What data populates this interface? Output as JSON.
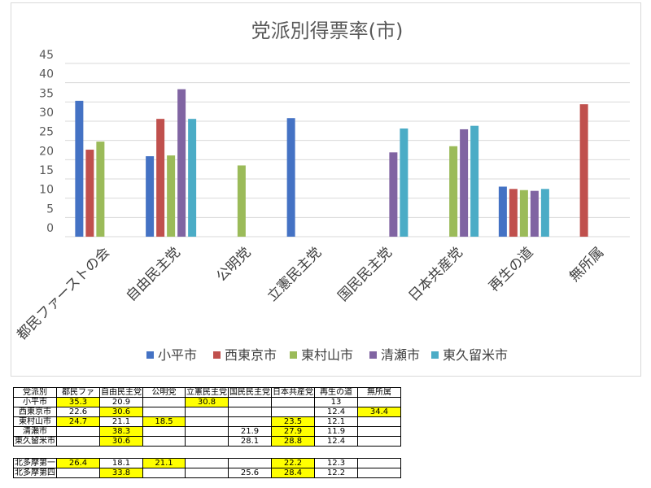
{
  "chart_data": {
    "type": "bar",
    "title": "党派別得票率(市)",
    "categories": [
      "都民ファーストの会",
      "自由民主党",
      "公明党",
      "立憲民主党",
      "国民民主党",
      "日本共産党",
      "再生の道",
      "無所属"
    ],
    "yticks": [
      "45",
      "40",
      "35",
      "30",
      "25",
      "20",
      "15",
      "10",
      "5",
      "0"
    ],
    "ylim": [
      0,
      45
    ],
    "grid": true,
    "legend_position": "bottom",
    "series": [
      {
        "name": "小平市",
        "color": "#4472c4",
        "values": [
          35.3,
          20.9,
          null,
          30.8,
          null,
          null,
          13.0,
          null
        ]
      },
      {
        "name": "西東京市",
        "color": "#c0504d",
        "values": [
          22.6,
          30.6,
          null,
          null,
          null,
          null,
          12.4,
          34.4
        ]
      },
      {
        "name": "東村山市",
        "color": "#9bbb59",
        "values": [
          24.7,
          21.1,
          18.5,
          null,
          null,
          23.5,
          12.1,
          null
        ]
      },
      {
        "name": "清瀬市",
        "color": "#8064a2",
        "values": [
          null,
          38.3,
          null,
          null,
          21.9,
          27.9,
          11.9,
          null
        ]
      },
      {
        "name": "東久留米市",
        "color": "#4bacc6",
        "values": [
          null,
          30.6,
          null,
          null,
          28.1,
          28.8,
          12.4,
          null
        ]
      }
    ]
  },
  "table": {
    "header": [
      "党派別",
      "都民ファ",
      "自由民主党",
      "公明党",
      "立憲民主党",
      "国民民主党",
      "日本共産党",
      "再生の道",
      "無所属"
    ],
    "rows": [
      {
        "label": "小平市",
        "cells": [
          "35.3",
          "20.9",
          "",
          "30.8",
          "",
          "",
          "13",
          ""
        ],
        "highlight": [
          true,
          false,
          false,
          true,
          false,
          false,
          false,
          false
        ]
      },
      {
        "label": "西東京市",
        "cells": [
          "22.6",
          "30.6",
          "",
          "",
          "",
          "",
          "12.4",
          "34.4"
        ],
        "highlight": [
          false,
          true,
          false,
          false,
          false,
          false,
          false,
          true
        ]
      },
      {
        "label": "東村山市",
        "cells": [
          "24.7",
          "21.1",
          "18.5",
          "",
          "",
          "23.5",
          "12.1",
          ""
        ],
        "highlight": [
          true,
          false,
          true,
          false,
          false,
          true,
          false,
          false
        ]
      },
      {
        "label": "清瀬市",
        "cells": [
          "",
          "38.3",
          "",
          "",
          "21.9",
          "27.9",
          "11.9",
          ""
        ],
        "highlight": [
          false,
          true,
          false,
          false,
          false,
          true,
          false,
          false
        ]
      },
      {
        "label": "東久留米市",
        "cells": [
          "",
          "30.6",
          "",
          "",
          "28.1",
          "28.8",
          "12.4",
          ""
        ],
        "highlight": [
          false,
          true,
          false,
          false,
          false,
          true,
          false,
          false
        ]
      }
    ],
    "sub_rows": [
      {
        "label": "北多摩第一",
        "cells": [
          "26.4",
          "18.1",
          "21.1",
          "",
          "",
          "22.2",
          "12.3",
          ""
        ],
        "highlight": [
          true,
          false,
          true,
          false,
          false,
          true,
          false,
          false
        ]
      },
      {
        "label": "北多摩第四",
        "cells": [
          "",
          "33.8",
          "",
          "",
          "25.6",
          "28.4",
          "12.2",
          ""
        ],
        "highlight": [
          false,
          true,
          false,
          false,
          false,
          true,
          false,
          false
        ]
      }
    ]
  }
}
